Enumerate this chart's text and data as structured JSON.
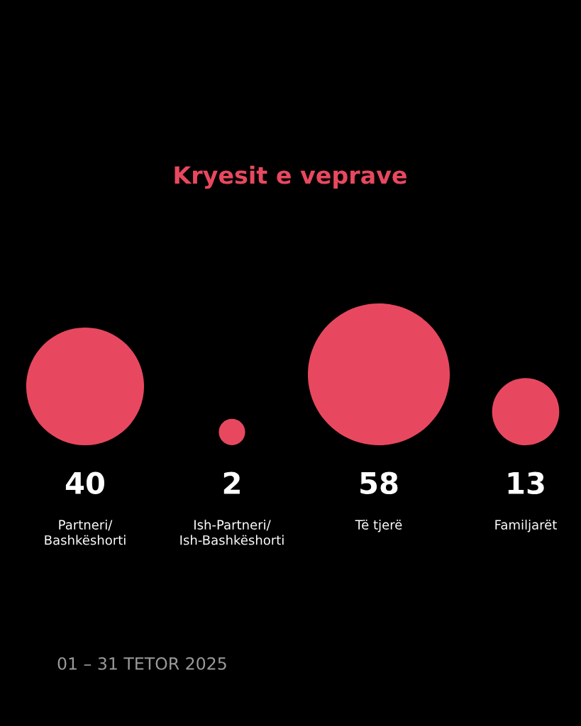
{
  "chart_data": {
    "type": "other",
    "title": "Kryesit e veprave",
    "categories": [
      "Partneri/\nBashkëshorti",
      "Ish-Partneri/\nIsh-Bashkëshorti",
      "Të tjerë",
      "Familjarët"
    ],
    "values": [
      40,
      2,
      58,
      13
    ],
    "color": "#e8485f",
    "data_labels": true,
    "annotations": [
      "01 – 31 TETOR 2025"
    ]
  }
}
